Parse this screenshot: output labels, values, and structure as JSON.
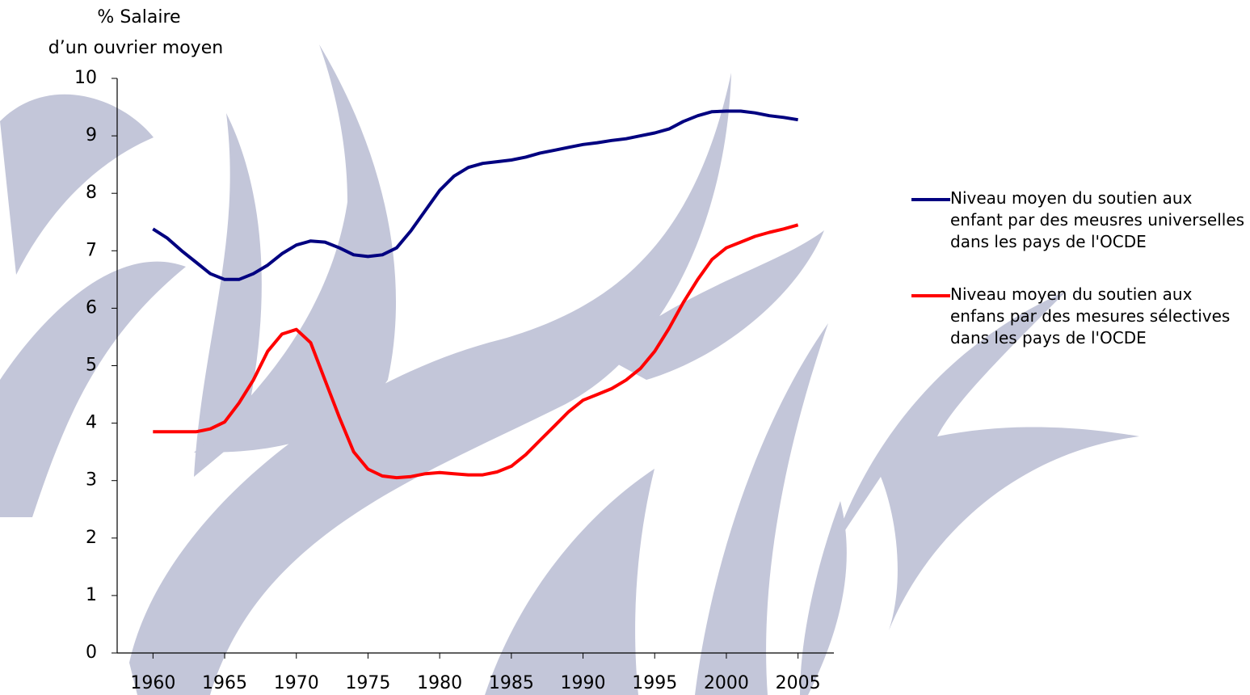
{
  "chart_data": {
    "type": "line",
    "y_label": [
      "% Salaire",
      "d’un ouvrier moyen"
    ],
    "x": [
      1960,
      1961,
      1962,
      1963,
      1964,
      1965,
      1966,
      1967,
      1968,
      1969,
      1970,
      1971,
      1972,
      1973,
      1974,
      1975,
      1976,
      1977,
      1978,
      1979,
      1980,
      1981,
      1982,
      1983,
      1984,
      1985,
      1986,
      1987,
      1988,
      1989,
      1990,
      1991,
      1992,
      1993,
      1994,
      1995,
      1996,
      1997,
      1998,
      1999,
      2000,
      2001,
      2002,
      2003,
      2004,
      2005
    ],
    "series": [
      {
        "name": "Niveau moyen du soutien aux enfant par des meusres universelles dans les pays de l'OCDE",
        "color": "#000080",
        "values": [
          7.38,
          7.22,
          7.0,
          6.8,
          6.6,
          6.5,
          6.5,
          6.6,
          6.75,
          6.95,
          7.1,
          7.17,
          7.15,
          7.05,
          6.93,
          6.9,
          6.93,
          7.05,
          7.35,
          7.7,
          8.05,
          8.3,
          8.45,
          8.52,
          8.55,
          8.58,
          8.63,
          8.7,
          8.75,
          8.8,
          8.85,
          8.88,
          8.92,
          8.95,
          9.0,
          9.05,
          9.12,
          9.25,
          9.35,
          9.42,
          9.43,
          9.43,
          9.4,
          9.35,
          9.32,
          9.28
        ]
      },
      {
        "name": "Niveau moyen du soutien aux enfans par des mesures sélectives dans les pays de l'OCDE",
        "color": "#ff0000",
        "values": [
          3.85,
          3.85,
          3.85,
          3.85,
          3.9,
          4.02,
          4.35,
          4.75,
          5.25,
          5.55,
          5.63,
          5.4,
          4.75,
          4.1,
          3.5,
          3.2,
          3.08,
          3.05,
          3.07,
          3.12,
          3.14,
          3.12,
          3.1,
          3.1,
          3.15,
          3.25,
          3.45,
          3.7,
          3.95,
          4.2,
          4.4,
          4.5,
          4.6,
          4.75,
          4.95,
          5.25,
          5.65,
          6.1,
          6.5,
          6.85,
          7.05,
          7.15,
          7.25,
          7.32,
          7.38,
          7.45
        ]
      }
    ],
    "xlim": [
      1957.5,
      2007.5
    ],
    "xticks": [
      1960,
      1965,
      1970,
      1975,
      1980,
      1985,
      1990,
      1995,
      2000,
      2005
    ],
    "ylim": [
      0,
      10
    ],
    "yticks": [
      0,
      1,
      2,
      3,
      4,
      5,
      6,
      7,
      8,
      9,
      10
    ],
    "grid": false,
    "legend": "right"
  }
}
